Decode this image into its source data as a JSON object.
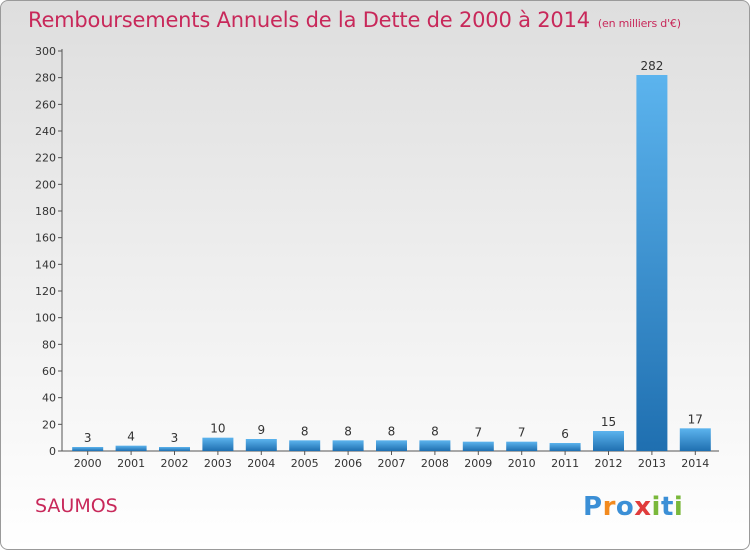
{
  "chart_data": {
    "type": "bar",
    "title": "Remboursements Annuels de la Dette de 2000 à 2014",
    "subtitle": "(en milliers d'€)",
    "categories": [
      "2000",
      "2001",
      "2002",
      "2003",
      "2004",
      "2005",
      "2006",
      "2007",
      "2008",
      "2009",
      "2010",
      "2011",
      "2012",
      "2013",
      "2014"
    ],
    "values": [
      3,
      4,
      3,
      10,
      9,
      8,
      8,
      8,
      8,
      7,
      7,
      6,
      15,
      282,
      17
    ],
    "ylim": [
      0,
      300
    ],
    "yticks": [
      0,
      20,
      40,
      60,
      80,
      100,
      120,
      140,
      160,
      180,
      200,
      220,
      240,
      260,
      280,
      300
    ],
    "xlabel": "",
    "ylabel": "",
    "grid": false,
    "legend": "none"
  },
  "footer": {
    "place": "SAUMOS",
    "brand": "Proxiti"
  },
  "colors": {
    "title": "#c8285a",
    "bar_light": "#5cb4ee",
    "bar_dark": "#1f6fb0",
    "axis": "#555555",
    "brand": [
      "#3b8fd6",
      "#f28a1e",
      "#3b8fd6",
      "#e03c3c",
      "#7ab83b",
      "#3b8fd6",
      "#7ab83b"
    ]
  }
}
